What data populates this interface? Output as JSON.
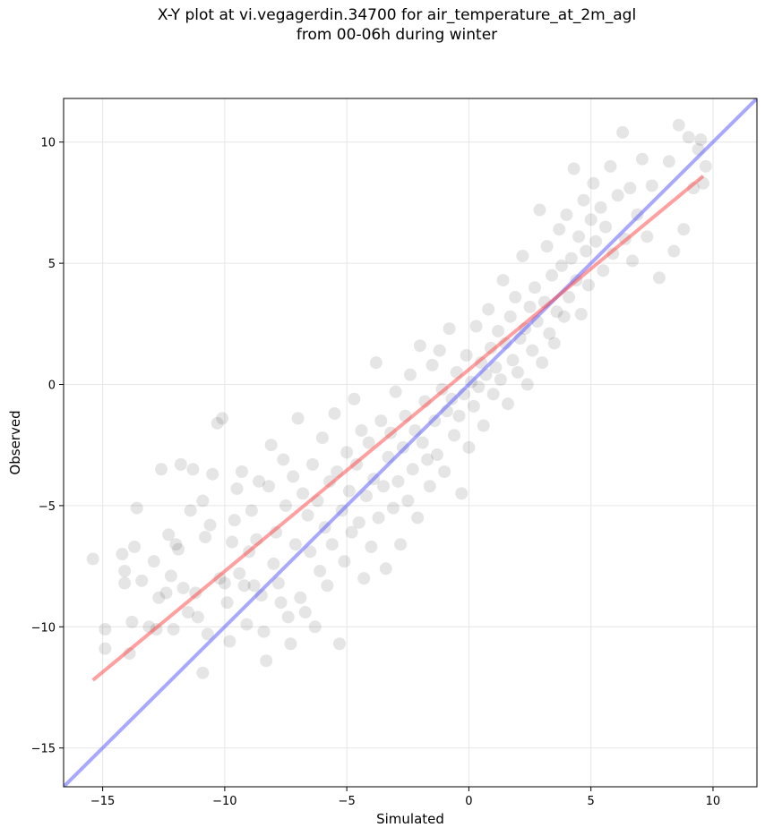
{
  "chart_data": {
    "type": "scatter",
    "title_line1": "X-Y plot at vi.vegagerdin.34700 for air_temperature_at_2m_agl",
    "title_line2": "from 00-06h during winter",
    "xlabel": "Simulated",
    "ylabel": "Observed",
    "xlim": [
      -16.6,
      11.8
    ],
    "ylim": [
      -16.6,
      11.8
    ],
    "xticks": [
      -15,
      -10,
      -5,
      0,
      5,
      10
    ],
    "yticks": [
      -15,
      -10,
      -5,
      0,
      5,
      10
    ],
    "xtick_labels": [
      "−15",
      "−10",
      "−5",
      "0",
      "5",
      "10"
    ],
    "ytick_labels": [
      "−15",
      "−10",
      "−5",
      "0",
      "5",
      "10"
    ],
    "grid": true,
    "point_color": "#000000",
    "point_alpha": 0.1,
    "regression_line": {
      "color": "#ff4040",
      "x": [
        -15.4,
        9.6
      ],
      "y": [
        -12.2,
        8.6
      ]
    },
    "identity_line": {
      "color": "#6060ff",
      "x": [
        -16.6,
        11.8
      ],
      "y": [
        -16.6,
        11.8
      ]
    },
    "points": [
      [
        -15.4,
        -7.2
      ],
      [
        -14.9,
        -10.1
      ],
      [
        -14.9,
        -10.9
      ],
      [
        -14.2,
        -7.0
      ],
      [
        -14.1,
        -7.7
      ],
      [
        -14.1,
        -8.2
      ],
      [
        -13.9,
        -11.1
      ],
      [
        -13.8,
        -9.8
      ],
      [
        -13.7,
        -6.7
      ],
      [
        -13.6,
        -5.1
      ],
      [
        -13.4,
        -8.1
      ],
      [
        -13.1,
        -10.0
      ],
      [
        -12.9,
        -7.3
      ],
      [
        -12.8,
        -10.1
      ],
      [
        -12.7,
        -8.8
      ],
      [
        -12.6,
        -3.5
      ],
      [
        -12.4,
        -8.6
      ],
      [
        -12.3,
        -6.2
      ],
      [
        -12.2,
        -7.9
      ],
      [
        -12.1,
        -10.1
      ],
      [
        -12.0,
        -6.6
      ],
      [
        -11.9,
        -6.8
      ],
      [
        -11.8,
        -3.3
      ],
      [
        -11.7,
        -8.4
      ],
      [
        -11.5,
        -9.4
      ],
      [
        -11.4,
        -5.2
      ],
      [
        -11.3,
        -3.5
      ],
      [
        -11.2,
        -8.6
      ],
      [
        -11.1,
        -9.6
      ],
      [
        -10.9,
        -11.9
      ],
      [
        -10.9,
        -4.8
      ],
      [
        -10.8,
        -6.3
      ],
      [
        -10.7,
        -10.3
      ],
      [
        -10.6,
        -5.8
      ],
      [
        -10.5,
        -3.7
      ],
      [
        -10.3,
        -1.6
      ],
      [
        -10.2,
        -8.0
      ],
      [
        -10.1,
        -1.4
      ],
      [
        -10.0,
        -8.2
      ],
      [
        -9.9,
        -9.0
      ],
      [
        -9.8,
        -10.6
      ],
      [
        -9.7,
        -6.5
      ],
      [
        -9.6,
        -5.6
      ],
      [
        -9.5,
        -4.3
      ],
      [
        -9.4,
        -7.8
      ],
      [
        -9.3,
        -3.6
      ],
      [
        -9.2,
        -8.3
      ],
      [
        -9.1,
        -9.9
      ],
      [
        -9.0,
        -6.9
      ],
      [
        -8.9,
        -5.2
      ],
      [
        -8.8,
        -8.3
      ],
      [
        -8.7,
        -6.4
      ],
      [
        -8.6,
        -4.0
      ],
      [
        -8.5,
        -8.7
      ],
      [
        -8.4,
        -10.2
      ],
      [
        -8.3,
        -11.4
      ],
      [
        -8.2,
        -4.2
      ],
      [
        -8.1,
        -2.5
      ],
      [
        -8.0,
        -7.4
      ],
      [
        -7.9,
        -6.1
      ],
      [
        -7.8,
        -8.2
      ],
      [
        -7.7,
        -9.0
      ],
      [
        -7.6,
        -3.1
      ],
      [
        -7.5,
        -5.0
      ],
      [
        -7.4,
        -9.6
      ],
      [
        -7.3,
        -10.7
      ],
      [
        -7.2,
        -3.8
      ],
      [
        -7.1,
        -6.6
      ],
      [
        -7.0,
        -1.4
      ],
      [
        -6.9,
        -8.8
      ],
      [
        -6.8,
        -4.5
      ],
      [
        -6.7,
        -9.4
      ],
      [
        -6.6,
        -5.4
      ],
      [
        -6.5,
        -6.9
      ],
      [
        -6.4,
        -3.3
      ],
      [
        -6.3,
        -10.0
      ],
      [
        -6.2,
        -4.8
      ],
      [
        -6.1,
        -7.7
      ],
      [
        -6.0,
        -2.2
      ],
      [
        -5.9,
        -5.9
      ],
      [
        -5.8,
        -8.3
      ],
      [
        -5.7,
        -4.0
      ],
      [
        -5.6,
        -6.6
      ],
      [
        -5.5,
        -1.2
      ],
      [
        -5.4,
        -3.6
      ],
      [
        -5.3,
        -10.7
      ],
      [
        -5.2,
        -5.2
      ],
      [
        -5.1,
        -7.3
      ],
      [
        -5.0,
        -2.8
      ],
      [
        -4.9,
        -4.4
      ],
      [
        -4.8,
        -6.1
      ],
      [
        -4.7,
        -0.6
      ],
      [
        -4.6,
        -3.3
      ],
      [
        -4.5,
        -5.7
      ],
      [
        -4.4,
        -1.9
      ],
      [
        -4.3,
        -8.0
      ],
      [
        -4.2,
        -4.6
      ],
      [
        -4.1,
        -2.4
      ],
      [
        -4.0,
        -6.7
      ],
      [
        -3.9,
        -3.9
      ],
      [
        -3.8,
        0.9
      ],
      [
        -3.7,
        -5.5
      ],
      [
        -3.6,
        -1.5
      ],
      [
        -3.5,
        -4.2
      ],
      [
        -3.4,
        -7.6
      ],
      [
        -3.3,
        -3.0
      ],
      [
        -3.2,
        -2.0
      ],
      [
        -3.1,
        -5.1
      ],
      [
        -3.0,
        -0.3
      ],
      [
        -2.9,
        -4.0
      ],
      [
        -2.8,
        -6.6
      ],
      [
        -2.7,
        -2.6
      ],
      [
        -2.6,
        -1.3
      ],
      [
        -2.5,
        -4.8
      ],
      [
        -2.4,
        0.4
      ],
      [
        -2.3,
        -3.5
      ],
      [
        -2.2,
        -1.9
      ],
      [
        -2.1,
        -5.5
      ],
      [
        -2.0,
        1.6
      ],
      [
        -1.9,
        -2.4
      ],
      [
        -1.8,
        -0.7
      ],
      [
        -1.7,
        -3.1
      ],
      [
        -1.6,
        -4.2
      ],
      [
        -1.5,
        0.8
      ],
      [
        -1.4,
        -1.5
      ],
      [
        -1.3,
        -2.9
      ],
      [
        -1.2,
        1.4
      ],
      [
        -1.1,
        -0.2
      ],
      [
        -1.0,
        -3.6
      ],
      [
        -0.9,
        -1.1
      ],
      [
        -0.8,
        2.3
      ],
      [
        -0.7,
        -0.6
      ],
      [
        -0.6,
        -2.1
      ],
      [
        -0.5,
        0.5
      ],
      [
        -0.4,
        -1.3
      ],
      [
        -0.3,
        -4.5
      ],
      [
        -0.2,
        -0.4
      ],
      [
        -0.1,
        1.2
      ],
      [
        0.0,
        -2.6
      ],
      [
        0.1,
        0.1
      ],
      [
        0.2,
        -0.9
      ],
      [
        0.3,
        2.4
      ],
      [
        0.4,
        -0.1
      ],
      [
        0.5,
        0.9
      ],
      [
        0.6,
        -1.7
      ],
      [
        0.7,
        0.4
      ],
      [
        0.8,
        3.1
      ],
      [
        0.9,
        1.5
      ],
      [
        1.0,
        -0.4
      ],
      [
        1.1,
        0.7
      ],
      [
        1.2,
        2.2
      ],
      [
        1.3,
        0.2
      ],
      [
        1.4,
        4.3
      ],
      [
        1.5,
        1.7
      ],
      [
        1.6,
        -0.8
      ],
      [
        1.7,
        2.8
      ],
      [
        1.8,
        1.0
      ],
      [
        1.9,
        3.6
      ],
      [
        2.0,
        0.5
      ],
      [
        2.1,
        1.9
      ],
      [
        2.2,
        5.3
      ],
      [
        2.3,
        2.3
      ],
      [
        2.4,
        0.0
      ],
      [
        2.5,
        3.2
      ],
      [
        2.6,
        1.4
      ],
      [
        2.7,
        4.0
      ],
      [
        2.8,
        2.6
      ],
      [
        2.9,
        7.2
      ],
      [
        3.0,
        0.9
      ],
      [
        3.1,
        3.4
      ],
      [
        3.2,
        5.7
      ],
      [
        3.3,
        2.1
      ],
      [
        3.4,
        4.5
      ],
      [
        3.5,
        1.7
      ],
      [
        3.6,
        3.0
      ],
      [
        3.7,
        6.4
      ],
      [
        3.8,
        4.9
      ],
      [
        3.9,
        2.8
      ],
      [
        4.0,
        7.0
      ],
      [
        4.1,
        3.6
      ],
      [
        4.2,
        5.2
      ],
      [
        4.3,
        8.9
      ],
      [
        4.4,
        4.3
      ],
      [
        4.5,
        6.1
      ],
      [
        4.6,
        2.9
      ],
      [
        4.7,
        7.6
      ],
      [
        4.8,
        5.5
      ],
      [
        4.9,
        4.1
      ],
      [
        5.0,
        6.8
      ],
      [
        5.1,
        8.3
      ],
      [
        5.2,
        5.9
      ],
      [
        5.4,
        7.3
      ],
      [
        5.5,
        4.7
      ],
      [
        5.6,
        6.5
      ],
      [
        5.8,
        9.0
      ],
      [
        5.9,
        5.4
      ],
      [
        6.1,
        7.8
      ],
      [
        6.3,
        10.4
      ],
      [
        6.4,
        6.0
      ],
      [
        6.6,
        8.1
      ],
      [
        6.7,
        5.1
      ],
      [
        6.9,
        7.0
      ],
      [
        7.1,
        9.3
      ],
      [
        7.3,
        6.1
      ],
      [
        7.5,
        8.2
      ],
      [
        7.8,
        4.4
      ],
      [
        8.2,
        9.2
      ],
      [
        8.4,
        5.5
      ],
      [
        8.6,
        10.7
      ],
      [
        8.8,
        6.4
      ],
      [
        9.0,
        10.2
      ],
      [
        9.2,
        8.1
      ],
      [
        9.4,
        9.7
      ],
      [
        9.6,
        8.3
      ],
      [
        9.7,
        9.0
      ],
      [
        9.5,
        10.1
      ]
    ]
  }
}
